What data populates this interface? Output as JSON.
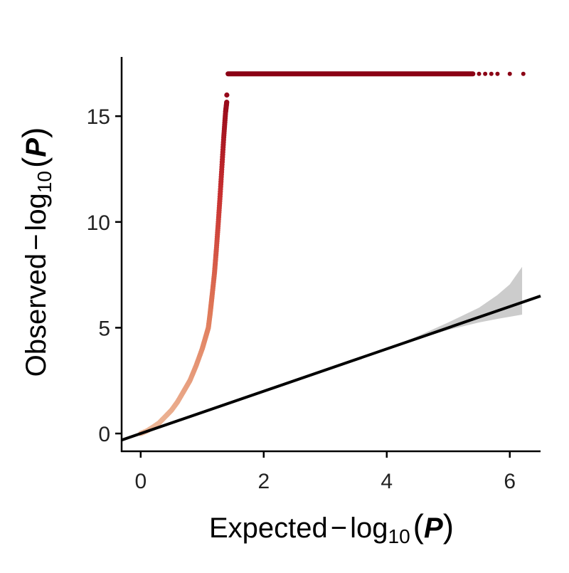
{
  "chart_data": {
    "type": "scatter",
    "title": "",
    "xlabel": {
      "prefix": "Expected",
      "minus": "−",
      "log": "log",
      "base": "10",
      "open": "(",
      "var": "P",
      "close": ")"
    },
    "ylabel": {
      "prefix": "Observed",
      "minus": "−",
      "log": "log",
      "base": "10",
      "open": "(",
      "var": "P",
      "close": ")"
    },
    "xlim": [
      -0.31,
      6.5
    ],
    "ylim": [
      -0.84,
      17.8
    ],
    "x_ticks": [
      0,
      2,
      4,
      6
    ],
    "x_tick_labels": [
      "0",
      "2",
      "4",
      "6"
    ],
    "y_ticks": [
      0,
      5,
      10,
      15
    ],
    "y_tick_labels": [
      "0",
      "5",
      "10",
      "15"
    ],
    "grid": false,
    "reference_line": {
      "slope": 1,
      "intercept": 0,
      "color": "#000000"
    },
    "confidence_band": {
      "color": "#cccccc",
      "x": [
        4.0,
        4.5,
        5.0,
        5.5,
        5.8,
        6.0,
        6.2
      ],
      "lower": [
        4.0,
        4.45,
        4.9,
        5.25,
        5.42,
        5.52,
        5.62
      ],
      "upper": [
        4.0,
        4.6,
        5.25,
        5.95,
        6.55,
        7.05,
        7.88
      ]
    },
    "series": [
      {
        "curve_points": {
          "x": [
            0,
            0.1,
            0.2,
            0.3,
            0.4,
            0.5,
            0.6,
            0.7,
            0.8,
            0.9,
            1.0,
            1.05,
            1.1,
            1.13,
            1.16,
            1.2,
            1.23,
            1.26,
            1.29,
            1.32,
            1.35,
            1.38,
            1.4
          ],
          "y": [
            0,
            0.12,
            0.3,
            0.5,
            0.8,
            1.1,
            1.5,
            2.0,
            2.5,
            3.2,
            4.0,
            4.5,
            5.0,
            5.7,
            6.5,
            7.6,
            8.7,
            9.9,
            11.2,
            12.6,
            14.0,
            15.2,
            15.7
          ]
        },
        "outlier_point": {
          "x": 1.4,
          "y": 16.0
        },
        "plateau": {
          "y": 17.0,
          "x_dense": [
            1.42,
            5.4
          ],
          "x_sparse": [
            5.5,
            5.6,
            5.7,
            5.8,
            6.0,
            6.22
          ]
        }
      }
    ],
    "color_scale": [
      "#edb99a",
      "#e07b5a",
      "#c93030",
      "#8b0015"
    ]
  }
}
